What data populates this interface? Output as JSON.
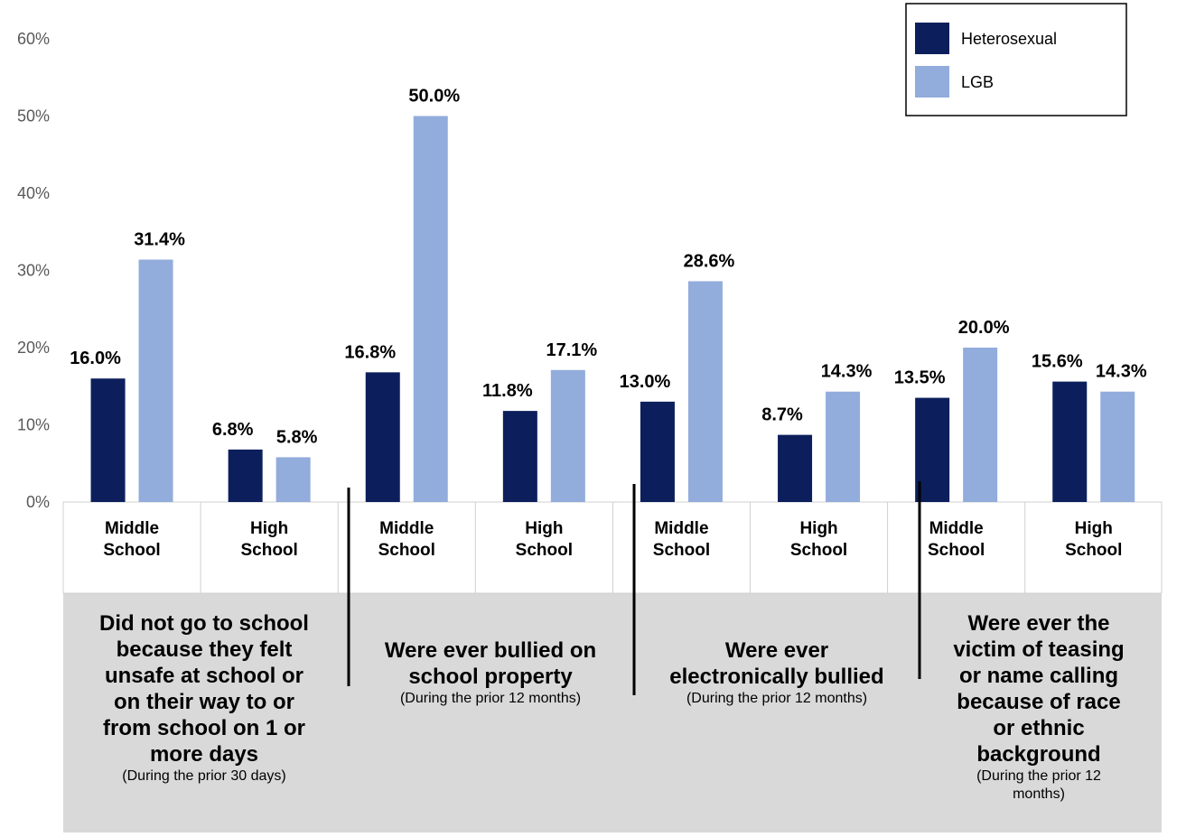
{
  "chart_data": {
    "type": "bar",
    "ylim": [
      0,
      60
    ],
    "yticks": [
      "0%",
      "10%",
      "20%",
      "30%",
      "40%",
      "50%",
      "60%"
    ],
    "ytick_values": [
      0,
      10,
      20,
      30,
      40,
      50,
      60
    ],
    "grid": false,
    "legend_position": "top-right",
    "colors": {
      "Heterosexual": "#0c1f5c",
      "LGB": "#92acdc"
    },
    "series": [
      {
        "name": "Heterosexual",
        "values": [
          16.0,
          6.8,
          16.8,
          11.8,
          13.0,
          8.7,
          13.5,
          15.6
        ],
        "labels": [
          "16.0%",
          "6.8%",
          "16.8%",
          "11.8%",
          "13.0%",
          "8.7%",
          "13.5%",
          "15.6%"
        ]
      },
      {
        "name": "LGB",
        "values": [
          31.4,
          5.8,
          50.0,
          17.1,
          28.6,
          14.3,
          20.0,
          14.3
        ],
        "labels": [
          "31.4%",
          "5.8%",
          "50.0%",
          "17.1%",
          "28.6%",
          "14.3%",
          "20.0%",
          "14.3%"
        ]
      }
    ],
    "categories": [
      [
        "Middle",
        "School"
      ],
      [
        "High",
        "School"
      ],
      [
        "Middle",
        "School"
      ],
      [
        "High",
        "School"
      ],
      [
        "Middle",
        "School"
      ],
      [
        "High",
        "School"
      ],
      [
        "Middle",
        "School"
      ],
      [
        "High",
        "School"
      ]
    ],
    "groups": [
      {
        "title_lines": [
          "Did not go to school",
          "because they felt",
          "unsafe at school or",
          "on their way to or",
          "from school on 1 or",
          "more days"
        ],
        "note_lines": [
          "(During the prior 30 days)"
        ]
      },
      {
        "title_lines": [
          "Were ever bullied on",
          "school property"
        ],
        "note_lines": [
          "(During the prior 12 months)"
        ]
      },
      {
        "title_lines": [
          "Were ever",
          "electronically bullied"
        ],
        "note_lines": [
          "(During the prior 12 months)"
        ]
      },
      {
        "title_lines": [
          "Were ever the",
          "victim of teasing",
          "or name calling",
          "because of race",
          "or ethnic",
          "background"
        ],
        "note_lines": [
          "(During the prior 12",
          "months)"
        ]
      }
    ]
  }
}
